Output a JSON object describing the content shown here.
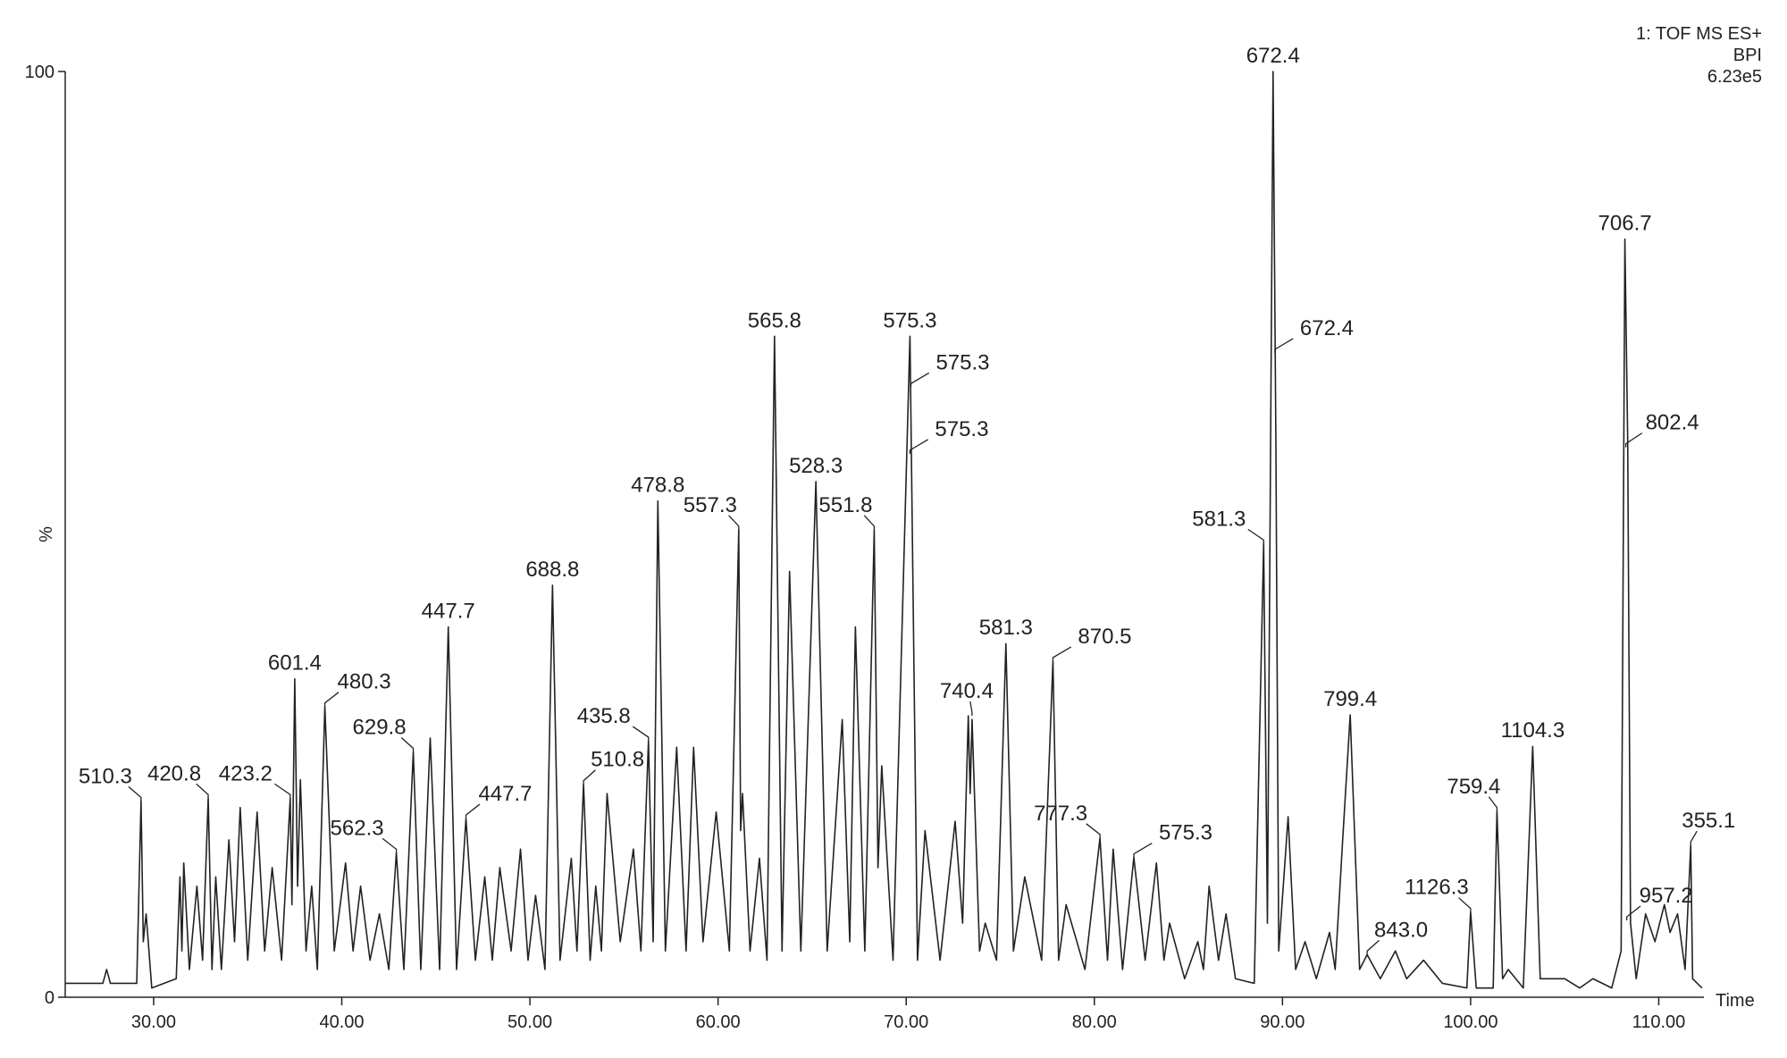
{
  "chart_data": {
    "type": "line",
    "header_lines": [
      "1: TOF MS ES+",
      "BPI",
      "6.23e5"
    ],
    "x_label": "Time",
    "y_label": "%",
    "color": "#222222",
    "xlim": [
      25.3,
      112.4
    ],
    "ylim": [
      0,
      100
    ],
    "xticks": [
      {
        "value": 30,
        "label": "30.00"
      },
      {
        "value": 40,
        "label": "40.00"
      },
      {
        "value": 50,
        "label": "50.00"
      },
      {
        "value": 60,
        "label": "60.00"
      },
      {
        "value": 70,
        "label": "70.00"
      },
      {
        "value": 80,
        "label": "80.00"
      },
      {
        "value": 90,
        "label": "90.00"
      },
      {
        "value": 100,
        "label": "100.00"
      },
      {
        "value": 110,
        "label": "110.00"
      }
    ],
    "yticks": [
      0,
      100
    ],
    "x": [
      25.3,
      27.3,
      27.5,
      27.7,
      29.1,
      29.33,
      29.45,
      29.6,
      29.9,
      31.2,
      31.4,
      31.5,
      31.6,
      31.9,
      32.3,
      32.6,
      32.9,
      33.1,
      33.3,
      33.6,
      34.0,
      34.3,
      34.6,
      35.0,
      35.5,
      35.9,
      36.3,
      36.8,
      37.26,
      37.35,
      37.5,
      37.65,
      37.8,
      38.1,
      38.4,
      38.7,
      39.1,
      39.6,
      40.2,
      40.6,
      41.0,
      41.5,
      42.0,
      42.5,
      42.9,
      43.3,
      43.8,
      44.2,
      44.7,
      45.2,
      45.66,
      46.1,
      46.6,
      47.1,
      47.6,
      48.0,
      48.4,
      49.0,
      49.5,
      49.9,
      50.3,
      50.8,
      51.2,
      51.6,
      52.2,
      52.5,
      52.85,
      53.2,
      53.5,
      53.8,
      54.1,
      54.8,
      55.5,
      55.9,
      56.3,
      56.55,
      56.8,
      57.2,
      57.8,
      58.3,
      58.7,
      59.2,
      59.9,
      60.6,
      61.1,
      61.2,
      61.3,
      61.7,
      62.2,
      62.6,
      63.0,
      63.4,
      63.8,
      64.4,
      65.2,
      65.8,
      66.6,
      67.0,
      67.3,
      67.8,
      68.3,
      68.5,
      68.7,
      69.3,
      70.2,
      70.6,
      71.0,
      71.8,
      72.6,
      73.0,
      73.3,
      73.4,
      73.5,
      73.9,
      74.2,
      74.8,
      75.3,
      75.7,
      76.3,
      77.2,
      77.8,
      78.1,
      78.5,
      79.5,
      80.3,
      80.7,
      81.0,
      81.5,
      82.1,
      82.7,
      83.3,
      83.7,
      84.0,
      84.8,
      85.5,
      85.8,
      86.1,
      86.6,
      87.0,
      87.5,
      88.5,
      89.0,
      89.2,
      89.5,
      89.65,
      89.8,
      90.3,
      90.7,
      91.2,
      91.8,
      92.5,
      92.8,
      93.2,
      93.6,
      94.1,
      94.5,
      95.2,
      96.0,
      96.6,
      97.5,
      98.5,
      99.8,
      100.0,
      100.3,
      101.2,
      101.4,
      101.7,
      102.0,
      102.8,
      103.3,
      103.7,
      105.0,
      105.8,
      106.5,
      107.5,
      108.0,
      108.2,
      108.35,
      108.5,
      108.8,
      109.3,
      109.8,
      110.3,
      110.6,
      111.0,
      111.4,
      111.7,
      111.8,
      112.3
    ],
    "values": [
      1.5,
      1.5,
      3,
      1.5,
      1.5,
      21.2,
      6,
      9,
      1,
      2,
      13,
      5,
      14.5,
      3,
      12,
      4,
      21.5,
      3,
      13,
      3,
      17,
      6,
      20.5,
      4,
      20,
      5,
      14,
      4,
      21.5,
      10,
      34.4,
      12,
      23.5,
      5,
      12,
      3,
      31.4,
      5,
      14.5,
      5,
      12,
      4,
      9,
      3,
      15.6,
      3,
      26.5,
      3,
      28,
      3,
      40.0,
      3,
      19.3,
      4,
      13,
      4,
      14,
      5,
      16,
      4,
      11,
      3,
      44.5,
      4,
      15,
      5,
      23.0,
      4,
      12,
      5,
      22,
      6,
      16,
      5,
      27.7,
      6,
      53.6,
      5,
      27,
      5,
      27,
      6,
      20,
      5,
      50.5,
      18,
      22,
      5,
      15,
      4,
      71.4,
      5,
      46,
      5,
      55.7,
      5,
      30,
      6,
      40,
      5,
      50.5,
      14,
      25,
      4,
      71.4,
      4,
      18,
      4,
      19,
      8,
      30.4,
      22,
      30,
      5,
      8,
      4,
      38.2,
      5,
      13,
      4,
      36.3,
      4,
      10,
      3,
      17.2,
      4,
      16,
      3,
      15.1,
      4,
      14.5,
      4,
      8,
      2,
      6,
      3,
      12,
      4,
      9,
      2,
      1.5,
      49.0,
      8,
      100,
      60,
      5,
      19.5,
      3,
      6,
      2,
      7,
      3,
      17,
      30.5,
      3,
      4.6,
      2,
      5,
      2,
      4,
      1.5,
      1,
      9.2,
      1,
      1,
      20.1,
      2,
      3,
      1,
      27.1,
      2,
      2,
      1,
      2,
      1,
      5,
      81.9,
      60,
      8,
      2,
      9,
      6,
      10,
      7,
      9,
      3,
      16.4,
      2,
      1
    ],
    "annotations": [
      {
        "text": "510.3",
        "x": 29.33,
        "y": 21.2
      },
      {
        "text": "420.8",
        "x": 32.9,
        "y": 21.5
      },
      {
        "text": "423.2",
        "x": 37.26,
        "y": 21.5
      },
      {
        "text": "601.4",
        "x": 37.5,
        "y": 34.4
      },
      {
        "text": "480.3",
        "x": 39.1,
        "y": 31.4
      },
      {
        "text": "629.8",
        "x": 43.8,
        "y": 26.5
      },
      {
        "text": "562.3",
        "x": 42.9,
        "y": 15.6
      },
      {
        "text": "447.7",
        "x": 45.66,
        "y": 40.0
      },
      {
        "text": "447.7",
        "x": 46.6,
        "y": 19.3
      },
      {
        "text": "688.8",
        "x": 51.2,
        "y": 44.5
      },
      {
        "text": "510.8",
        "x": 52.85,
        "y": 23.0
      },
      {
        "text": "435.8",
        "x": 56.3,
        "y": 27.7
      },
      {
        "text": "478.8",
        "x": 56.8,
        "y": 53.6
      },
      {
        "text": "557.3",
        "x": 61.1,
        "y": 50.5
      },
      {
        "text": "565.8",
        "x": 63.0,
        "y": 71.4
      },
      {
        "text": "528.3",
        "x": 65.2,
        "y": 55.7
      },
      {
        "text": "551.8",
        "x": 68.3,
        "y": 50.5
      },
      {
        "text": "575.3",
        "x": 70.2,
        "y": 71.4
      },
      {
        "text": "575.3",
        "x": 70.25,
        "y": 65.9
      },
      {
        "text": "575.3",
        "x": 70.2,
        "y": 58.7
      },
      {
        "text": "740.4",
        "x": 73.5,
        "y": 30.4
      },
      {
        "text": "581.3",
        "x": 75.3,
        "y": 38.2
      },
      {
        "text": "870.5",
        "x": 77.8,
        "y": 36.3
      },
      {
        "text": "777.3",
        "x": 80.3,
        "y": 17.2
      },
      {
        "text": "575.3",
        "x": 82.1,
        "y": 15.1
      },
      {
        "text": "581.3",
        "x": 89.0,
        "y": 49.0
      },
      {
        "text": "672.4",
        "x": 89.5,
        "y": 100
      },
      {
        "text": "672.4",
        "x": 89.6,
        "y": 69.6
      },
      {
        "text": "799.4",
        "x": 93.6,
        "y": 30.5
      },
      {
        "text": "843.0",
        "x": 94.5,
        "y": 4.6
      },
      {
        "text": "1126.3",
        "x": 100.0,
        "y": 9.2
      },
      {
        "text": "759.4",
        "x": 101.4,
        "y": 20.1
      },
      {
        "text": "1104.3",
        "x": 103.3,
        "y": 27.1
      },
      {
        "text": "706.7",
        "x": 108.2,
        "y": 81.9
      },
      {
        "text": "802.4",
        "x": 108.25,
        "y": 59.4
      },
      {
        "text": "957.2",
        "x": 108.3,
        "y": 8.3
      },
      {
        "text": "355.1",
        "x": 111.7,
        "y": 16.4
      }
    ]
  }
}
